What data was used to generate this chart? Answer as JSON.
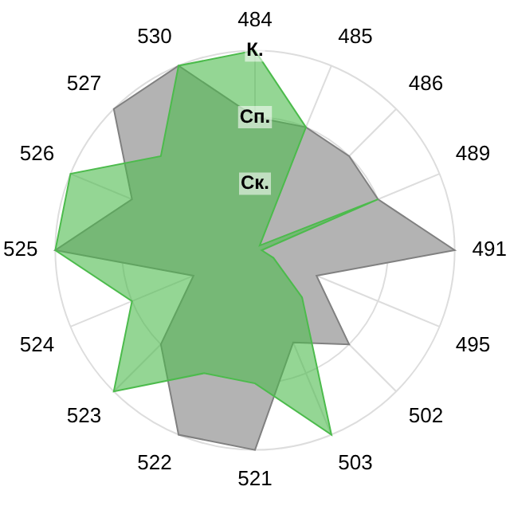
{
  "chart_data": {
    "type": "radar",
    "categories": [
      "484",
      "485",
      "486",
      "489",
      "491",
      "495",
      "502",
      "503",
      "521",
      "522",
      "523",
      "524",
      "525",
      "526",
      "527",
      "530"
    ],
    "series": [
      {
        "color": "#b3b3b3",
        "values": [
          2.0,
          2.0,
          2.0,
          2.0,
          3.0,
          1.0,
          2.0,
          1.5,
          3.0,
          3.0,
          2.0,
          1.0,
          3.0,
          2.0,
          3.0,
          3.0
        ]
      },
      {
        "color": "#4cbb4c",
        "values": [
          3.0,
          2.0,
          0.1,
          2.0,
          0.1,
          0.3,
          1.0,
          3.0,
          2.0,
          2.0,
          3.0,
          2.0,
          3.0,
          3.0,
          2.0,
          3.0
        ]
      }
    ],
    "ylim": [
      0,
      3
    ],
    "yticks": [
      {
        "value": 1,
        "label": "Ск."
      },
      {
        "value": 2,
        "label": "Сп."
      },
      {
        "value": 3,
        "label": "К."
      }
    ],
    "grid": true,
    "legend": false
  }
}
